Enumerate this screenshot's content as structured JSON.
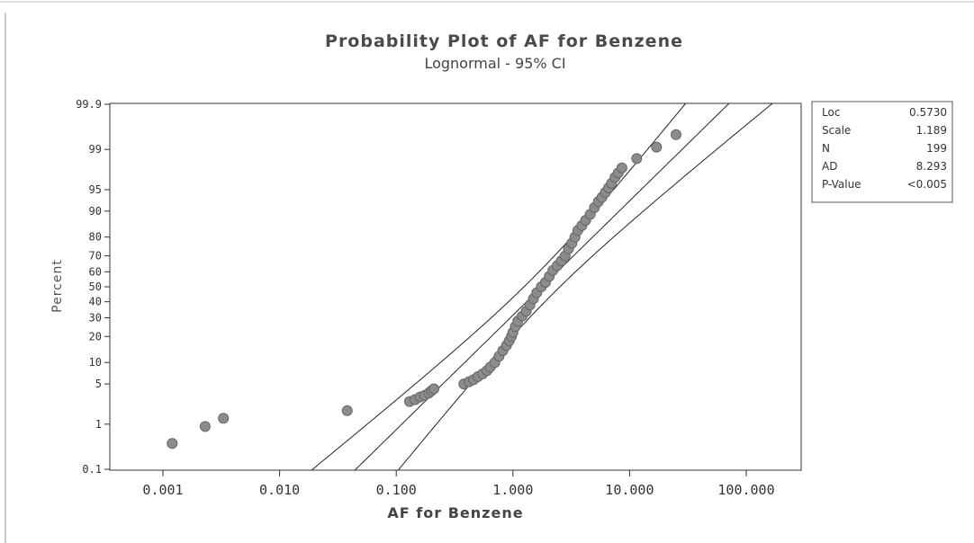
{
  "chart_data": {
    "type": "scatter",
    "title": "Probability Plot of AF for Benzene",
    "subtitle": "Lognormal - 95% CI",
    "xlabel": "AF for Benzene",
    "ylabel": "Percent",
    "x_scale": "log",
    "y_scale": "normal-probability",
    "xlim": [
      0.0005,
      200
    ],
    "ylim": [
      0.1,
      99.9
    ],
    "x_ticks": [
      0.001,
      0.01,
      0.1,
      1,
      10,
      100
    ],
    "x_tick_labels": [
      "0.001",
      "0.010",
      "0.100",
      "1.000",
      "10.000",
      "100.000"
    ],
    "y_ticks": [
      0.1,
      1,
      5,
      10,
      20,
      30,
      40,
      50,
      60,
      70,
      80,
      90,
      95,
      99,
      99.9
    ],
    "y_tick_labels": [
      "0.1",
      "1",
      "5",
      "10",
      "20",
      "30",
      "40",
      "50",
      "60",
      "70",
      "80",
      "90",
      "95",
      "99",
      "99.9"
    ],
    "grid": false,
    "fit": {
      "loc": 0.573,
      "scale": 1.189
    },
    "ci_level": 0.95,
    "n": 199,
    "points": [
      [
        0.0012,
        0.4
      ],
      [
        0.0023,
        0.9
      ],
      [
        0.0033,
        1.3
      ],
      [
        0.038,
        1.8
      ],
      [
        0.13,
        2.6
      ],
      [
        0.145,
        2.8
      ],
      [
        0.16,
        3.1
      ],
      [
        0.175,
        3.3
      ],
      [
        0.19,
        3.6
      ],
      [
        0.2,
        3.9
      ],
      [
        0.21,
        4.2
      ],
      [
        0.38,
        5.0
      ],
      [
        0.42,
        5.4
      ],
      [
        0.46,
        5.8
      ],
      [
        0.5,
        6.4
      ],
      [
        0.55,
        7.0
      ],
      [
        0.6,
        7.8
      ],
      [
        0.64,
        8.7
      ],
      [
        0.7,
        10
      ],
      [
        0.76,
        12
      ],
      [
        0.82,
        14
      ],
      [
        0.88,
        16
      ],
      [
        0.93,
        18
      ],
      [
        0.97,
        20
      ],
      [
        1.0,
        22
      ],
      [
        1.05,
        25
      ],
      [
        1.1,
        28
      ],
      [
        1.2,
        31
      ],
      [
        1.3,
        34
      ],
      [
        1.4,
        38
      ],
      [
        1.5,
        42
      ],
      [
        1.6,
        46
      ],
      [
        1.75,
        50
      ],
      [
        1.9,
        53
      ],
      [
        2.05,
        57
      ],
      [
        2.2,
        61
      ],
      [
        2.4,
        64
      ],
      [
        2.6,
        67
      ],
      [
        2.8,
        70
      ],
      [
        3.0,
        74
      ],
      [
        3.2,
        77
      ],
      [
        3.4,
        80
      ],
      [
        3.6,
        83
      ],
      [
        3.9,
        85
      ],
      [
        4.2,
        87
      ],
      [
        4.6,
        89
      ],
      [
        5.0,
        91
      ],
      [
        5.4,
        92.5
      ],
      [
        5.8,
        93.5
      ],
      [
        6.2,
        94.5
      ],
      [
        6.6,
        95.3
      ],
      [
        7.0,
        96
      ],
      [
        7.5,
        96.8
      ],
      [
        8.0,
        97.3
      ],
      [
        8.6,
        97.8
      ],
      [
        11.5,
        98.5
      ],
      [
        17.0,
        99.1
      ],
      [
        25.0,
        99.5
      ]
    ],
    "stats_table": [
      {
        "label": "Loc",
        "value": "0.5730"
      },
      {
        "label": "Scale",
        "value": "1.189"
      },
      {
        "label": "N",
        "value": "199"
      },
      {
        "label": "AD",
        "value": "8.293"
      },
      {
        "label": "P-Value",
        "value": "<0.005"
      }
    ],
    "colors": {
      "points": "#8c8c8c",
      "points_edge": "#666666",
      "lines": "#222222",
      "axis": "#333333"
    }
  }
}
